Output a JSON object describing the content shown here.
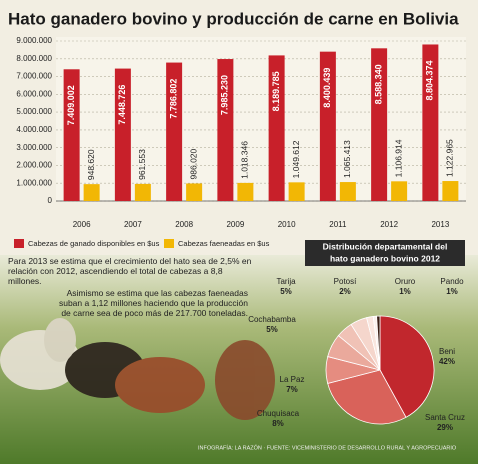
{
  "chart_data": [
    {
      "type": "bar",
      "title": "Hato ganadero bovino y producción de carne en Bolivia",
      "categories": [
        "2006",
        "2007",
        "2008",
        "2009",
        "2010",
        "2011",
        "2012",
        "2013"
      ],
      "series": [
        {
          "name": "Cabezas de ganado disponibles en $us",
          "color": "#c8202a",
          "values": [
            7409002,
            7448726,
            7786802,
            7985230,
            8189785,
            8400439,
            8588340,
            8804374
          ],
          "value_labels": [
            "7.409.002",
            "7.448.726",
            "7.786.802",
            "7.985.230",
            "8.189.785",
            "8.400.439",
            "8.588.340",
            "8.804.374"
          ]
        },
        {
          "name": "Cabezas faeneadas en $us",
          "color": "#f2b705",
          "values": [
            948620,
            961553,
            986020,
            1018346,
            1049612,
            1065413,
            1106914,
            1122965
          ],
          "value_labels": [
            "948.620",
            "961.553",
            "986.020",
            "1.018.346",
            "1.049.612",
            "1.065.413",
            "1.106.914",
            "1.122.965"
          ]
        }
      ],
      "ylim": [
        0,
        9000000
      ],
      "yticks": [
        0,
        {
          "value": 1000000,
          "label": "1.000.000"
        },
        {
          "value": 2000000,
          "label": "2.000.000"
        },
        {
          "value": 3000000,
          "label": "3.000.000"
        },
        {
          "value": 4000000,
          "label": "4.000.000"
        },
        {
          "value": 5000000,
          "label": "5.000.000"
        },
        {
          "value": 6000000,
          "label": "6.000.000"
        },
        {
          "value": 7000000,
          "label": "7.000.000"
        },
        {
          "value": 8000000,
          "label": "8.000.000"
        },
        {
          "value": 9000000,
          "label": "9.000.000"
        }
      ],
      "grid": true
    },
    {
      "type": "pie",
      "title": "Distribución departamental del hato ganadero bovino 2012",
      "categories": [
        "Beni",
        "Santa Cruz",
        "Chuquisaca",
        "La Paz",
        "Cochabamba",
        "Tarija",
        "Potosí",
        "Oruro",
        "Pando"
      ],
      "values": [
        42,
        29,
        8,
        7,
        5,
        5,
        2,
        1,
        1
      ],
      "value_labels": [
        "42%",
        "29%",
        "8%",
        "7%",
        "5%",
        "5%",
        "2%",
        "1%",
        "1%"
      ],
      "colors": [
        "#c1272d",
        "#d9625a",
        "#e58c80",
        "#eaa99c",
        "#f0c2b6",
        "#f5d6cc",
        "#f9e6df",
        "#fbf0ec",
        "#3a1d14"
      ]
    }
  ],
  "notes": [
    "Para 2013 se estima que el crecimiento del hato sea de 2,5% en relación con 2012, ascendiendo el total de cabezas a 8,8 millones.",
    "Asimismo se estima que las cabezas faeneadas suban a 1,12 millones haciendo que la producción de carne sea de poco más de 217.700 toneladas."
  ],
  "footer": "INFOGRAFÍA: LA RAZÓN · FUENTE: VICEMINISTERIO DE DESARROLLO RURAL Y AGROPECUARIO"
}
